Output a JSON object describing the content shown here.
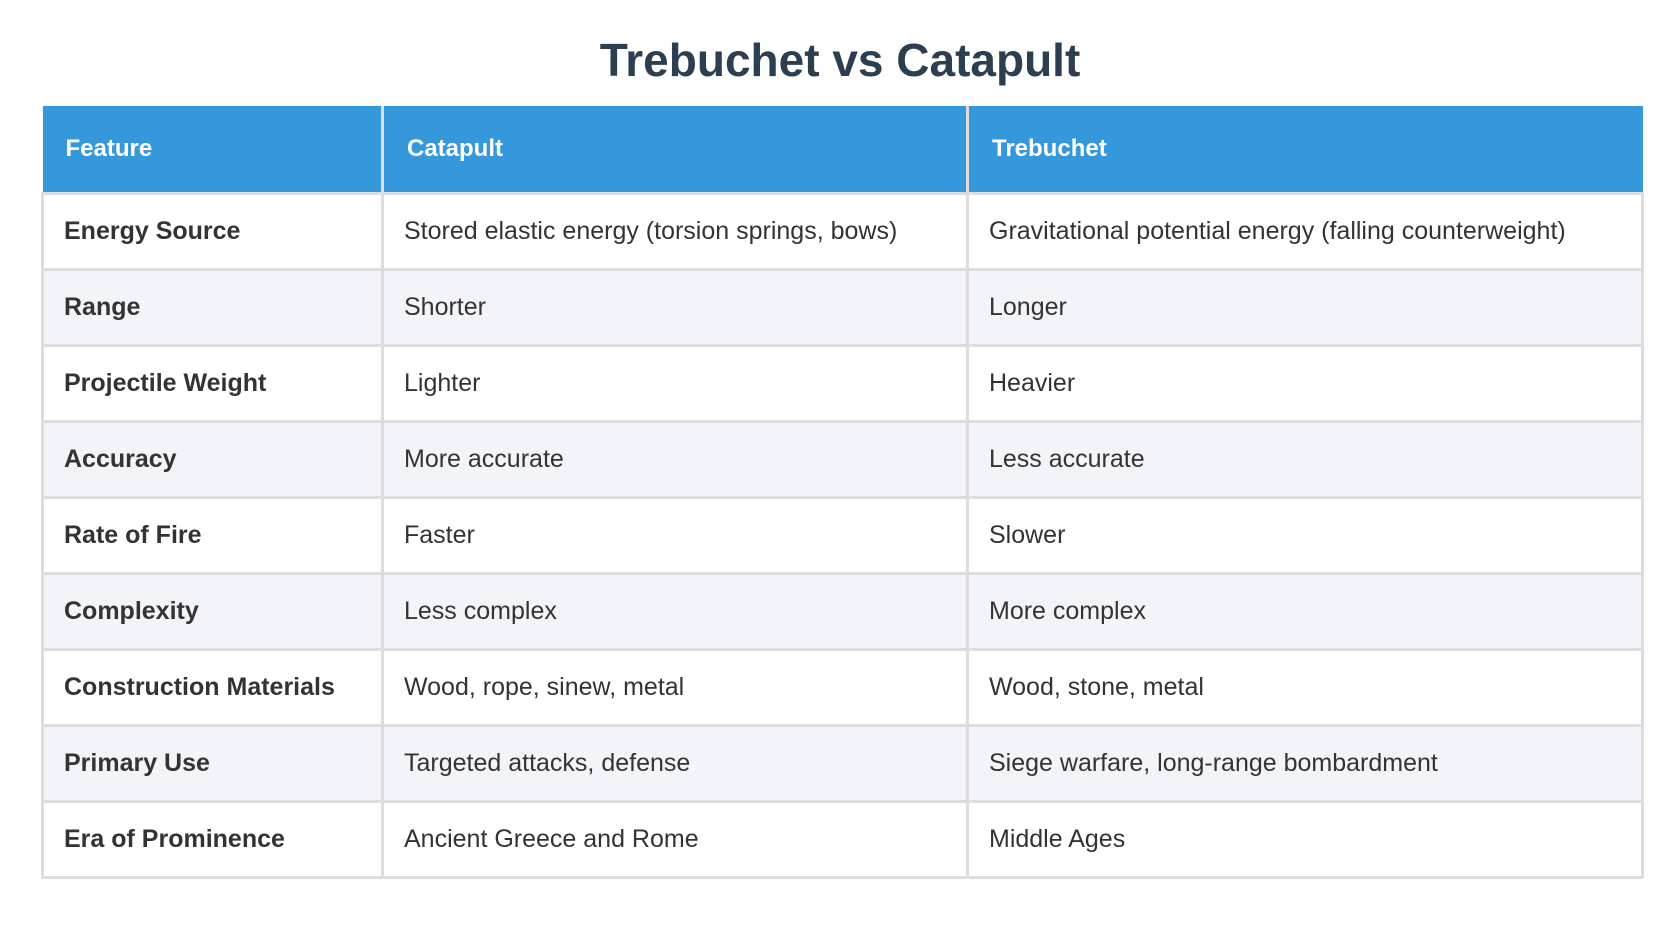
{
  "title": "Trebuchet vs Catapult",
  "table": {
    "headers": [
      "Feature",
      "Catapult",
      "Trebuchet"
    ],
    "rows": [
      {
        "feature": "Energy Source",
        "catapult": "Stored elastic energy (torsion springs, bows)",
        "trebuchet": "Gravitational potential energy (falling counterweight)"
      },
      {
        "feature": "Range",
        "catapult": "Shorter",
        "trebuchet": "Longer"
      },
      {
        "feature": "Projectile Weight",
        "catapult": "Lighter",
        "trebuchet": "Heavier"
      },
      {
        "feature": "Accuracy",
        "catapult": "More accurate",
        "trebuchet": "Less accurate"
      },
      {
        "feature": "Rate of Fire",
        "catapult": "Faster",
        "trebuchet": "Slower"
      },
      {
        "feature": "Complexity",
        "catapult": "Less complex",
        "trebuchet": "More complex"
      },
      {
        "feature": "Construction Materials",
        "catapult": "Wood, rope, sinew, metal",
        "trebuchet": "Wood, stone, metal"
      },
      {
        "feature": "Primary Use",
        "catapult": "Targeted attacks, defense",
        "trebuchet": "Siege warfare, long-range bombardment"
      },
      {
        "feature": "Era of Prominence",
        "catapult": "Ancient Greece and Rome",
        "trebuchet": "Middle Ages"
      }
    ]
  },
  "colors": {
    "header_bg": "#3498db",
    "header_text": "#ffffff",
    "title_text": "#2c3e50",
    "row_alt_bg": "#f2f4f9",
    "border": "#dddddd"
  }
}
